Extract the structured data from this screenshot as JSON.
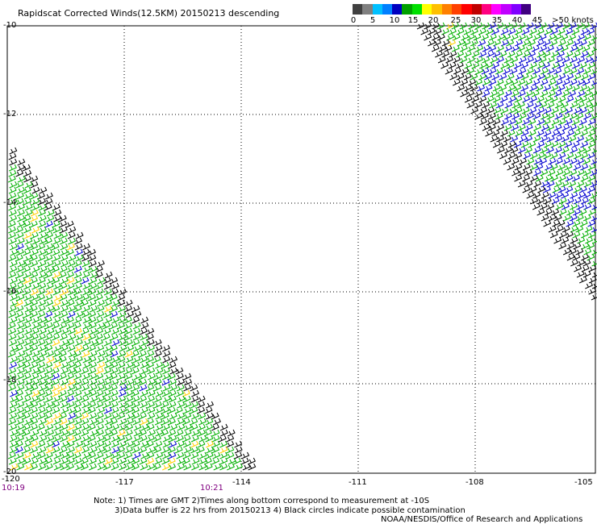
{
  "title": "Rapidscat Corrected Winds(12.5KM) 20150213 descending",
  "legend": {
    "colors": [
      "#404040",
      "#808080",
      "#00c0ff",
      "#0080ff",
      "#0000c0",
      "#00a000",
      "#00e000",
      "#ffff00",
      "#ffc000",
      "#ff8000",
      "#ff4000",
      "#ff0000",
      "#c00000",
      "#ff0080",
      "#ff00ff",
      "#c000ff",
      "#8000ff",
      "#400080"
    ],
    "labels": [
      "0",
      "5",
      "10",
      "15",
      "20",
      "25",
      "30",
      "35",
      "40",
      "45",
      ">50 knots"
    ]
  },
  "lat_labels": [
    "-10",
    "-12",
    "-14",
    "-16",
    "-18",
    "-20"
  ],
  "lon_labels": [
    "-120",
    "-117",
    "-114",
    "-111",
    "-108",
    "-105"
  ],
  "times": [
    "10:19",
    "10:21"
  ],
  "notes": [
    "Note: 1) Times are GMT 2)Times along bottom correspond to measurement at -10S",
    "3)Data buffer is 22 hrs from 20150213 4) Black circles indicate possible contamination",
    "NOAA/NESDIS/Office of Research and Applications"
  ],
  "wind_colors": {
    "calm": "#000000",
    "moderate": "#00b000",
    "strong": "#0000d0",
    "light": "#ffd000"
  }
}
